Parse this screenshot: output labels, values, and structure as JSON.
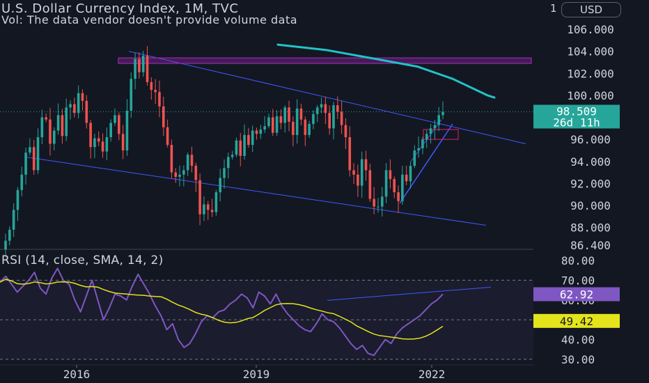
{
  "header": {
    "title": "U.S. Dollar Currency Index, 1M, TVC",
    "volume_note": "Vol: The data vendor doesn't provide volume data",
    "currency": "USD",
    "currency_prefix": "1"
  },
  "chart_data": [
    {
      "type": "candlestick",
      "title": "U.S. Dollar Currency Index, 1M, TVC",
      "y_ticks": [
        "106.000",
        "104.000",
        "102.000",
        "100.000",
        "96.000",
        "94.000",
        "92.000",
        "90.000",
        "88.000",
        "86.400"
      ],
      "ylim": [
        86.4,
        106.0
      ],
      "x_ticks": [
        "2016",
        "2019",
        "2022"
      ],
      "last_price": "98.509",
      "countdown": "26d 11h",
      "colors": {
        "up": "#26a69a",
        "down": "#ef5350",
        "ma": "#22c3c9",
        "trendline": "#3d5afe",
        "resistance": "#9c27b0",
        "last_price_tag": "#26a69a"
      },
      "moving_average": {
        "from": [
          399,
          104.6
        ],
        "points": [
          [
            399,
            104.6
          ],
          [
            470,
            104.1
          ],
          [
            540,
            103.3
          ],
          [
            600,
            102.6
          ],
          [
            650,
            101.5
          ],
          [
            700,
            100.0
          ],
          [
            710,
            99.8
          ]
        ]
      }
    },
    {
      "type": "line",
      "title": "RSI (14, close, SMA, 14, 2)",
      "y_ticks": [
        "80.00",
        "70.00",
        "60.00",
        "40.00",
        "30.00"
      ],
      "ylim": [
        29.0,
        81.0
      ],
      "bands": [
        70,
        50,
        30
      ],
      "series": [
        {
          "name": "RSI",
          "color": "#7e57c2",
          "last_value": "62.92"
        },
        {
          "name": "SMA",
          "color": "#e4e41c",
          "last_value": "49.42"
        }
      ]
    }
  ]
}
